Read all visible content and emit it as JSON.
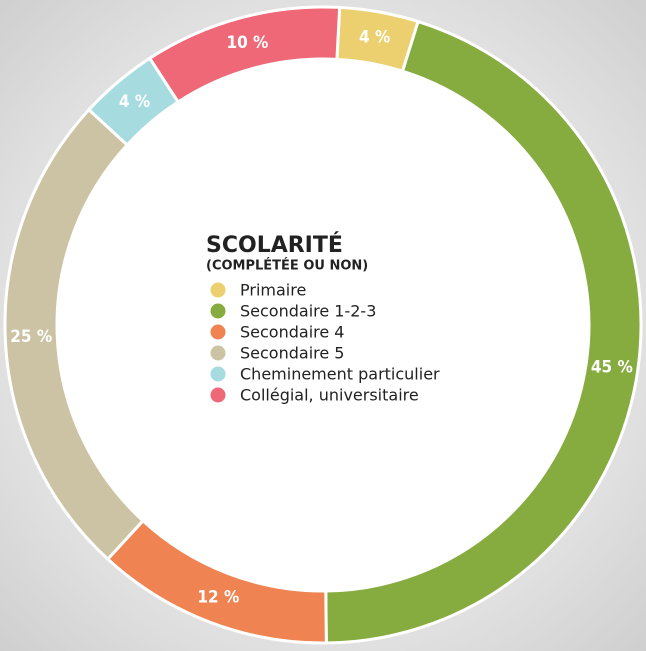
{
  "chart_data": {
    "type": "pie",
    "title": "SCOLARITÉ",
    "subtitle": "(COMPLÉTÉE OU NON)",
    "categories": [
      "Primaire",
      "Secondaire 1-2-3",
      "Secondaire 4",
      "Secondaire 5",
      "Cheminement particulier",
      "Collégial, universitaire"
    ],
    "values": [
      4,
      45,
      12,
      25,
      4,
      10
    ],
    "value_labels": [
      "4 %",
      "45 %",
      "12 %",
      "25 %",
      "4 %",
      "10 %"
    ],
    "colors": [
      "#ecd06f",
      "#86ab3f",
      "#ef8452",
      "#cbc3a3",
      "#a6dbe0",
      "#ee6877"
    ],
    "donut": true
  }
}
